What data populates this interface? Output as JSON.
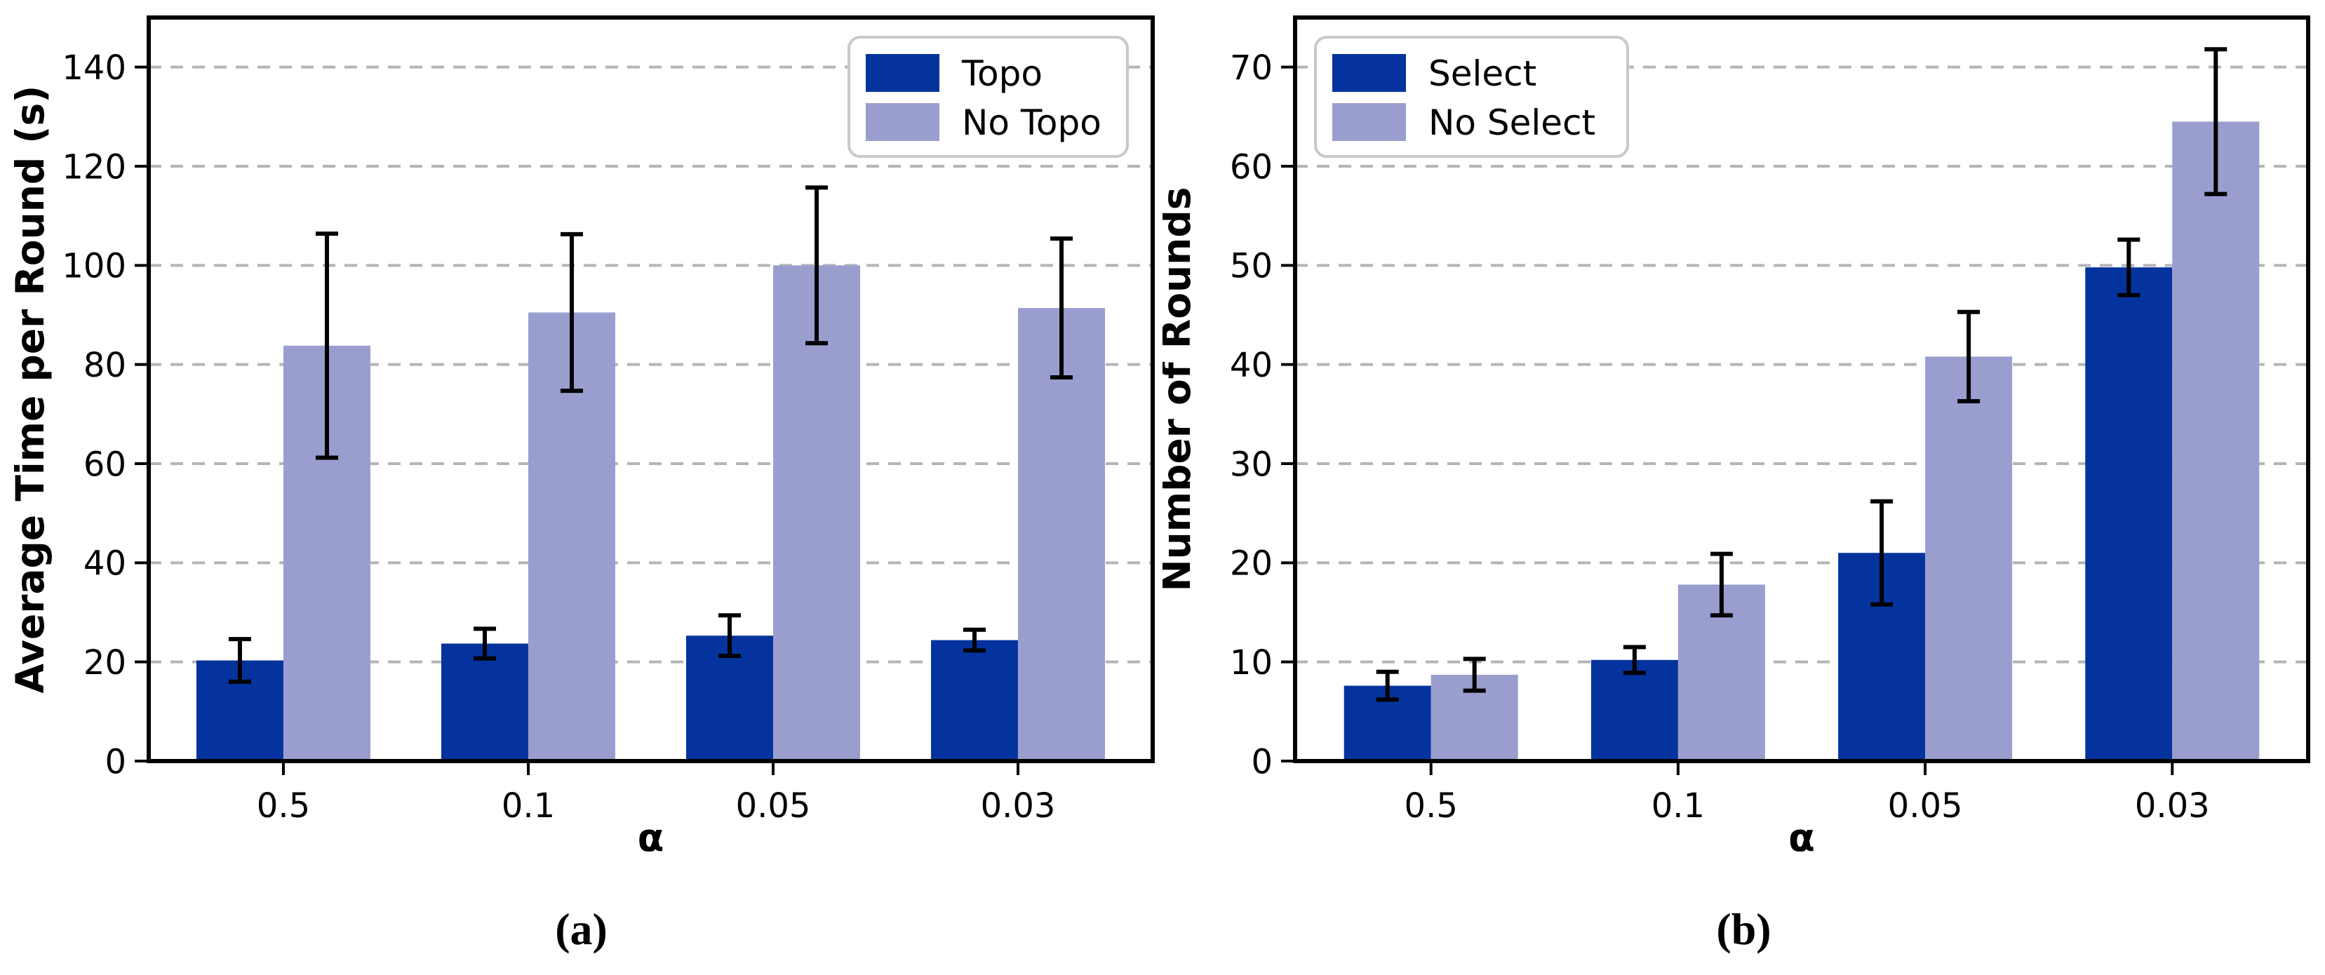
{
  "figure": {
    "background": "#ffffff",
    "text_color": "#000000",
    "grid_color": "#b5b5b5",
    "spine_color": "#000000",
    "errorbar_color": "#000000",
    "legend_border_color": "#c9c9c9",
    "legend_background": "#ffffff"
  },
  "chart_data": [
    {
      "type": "bar",
      "caption": "(a)",
      "title": "",
      "xlabel": "α",
      "ylabel": "Average Time per Round (s)",
      "categories": [
        "0.5",
        "0.1",
        "0.05",
        "0.03"
      ],
      "series": [
        {
          "name": "Topo",
          "color": "#05339E",
          "values": [
            20.3,
            23.7,
            25.3,
            24.4
          ],
          "errors": [
            4.3,
            3.0,
            4.1,
            2.1
          ]
        },
        {
          "name": "No Topo",
          "color": "#9A9ECF",
          "values": [
            83.8,
            90.5,
            100.0,
            91.4
          ],
          "errors": [
            22.6,
            15.8,
            15.7,
            14.0
          ]
        }
      ],
      "ylim": [
        0,
        150
      ],
      "yticks": [
        0,
        20,
        40,
        60,
        80,
        100,
        120,
        140
      ],
      "grid": "dashed-horizontal",
      "legend_position": "upper-right"
    },
    {
      "type": "bar",
      "caption": "(b)",
      "title": "",
      "xlabel": "α",
      "ylabel": "Number of Rounds",
      "categories": [
        "0.5",
        "0.1",
        "0.05",
        "0.03"
      ],
      "series": [
        {
          "name": "Select",
          "color": "#05339E",
          "values": [
            7.6,
            10.2,
            21.0,
            49.8
          ],
          "errors": [
            1.4,
            1.3,
            5.2,
            2.8
          ]
        },
        {
          "name": "No Select",
          "color": "#9A9ECF",
          "values": [
            8.7,
            17.8,
            40.8,
            64.5
          ],
          "errors": [
            1.6,
            3.1,
            4.5,
            7.3
          ]
        }
      ],
      "ylim": [
        0,
        75
      ],
      "yticks": [
        0,
        10,
        20,
        30,
        40,
        50,
        60,
        70
      ],
      "grid": "dashed-horizontal",
      "legend_position": "upper-left"
    }
  ]
}
